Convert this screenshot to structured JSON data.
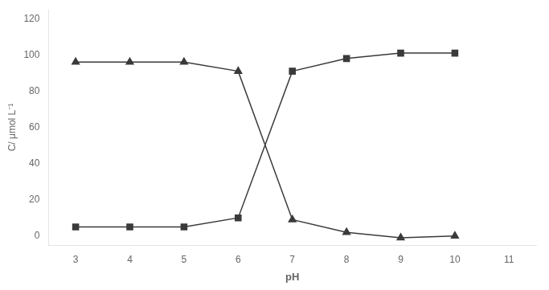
{
  "chart_data": {
    "type": "line",
    "x": [
      3,
      4,
      5,
      6,
      7,
      8,
      9,
      10
    ],
    "series": [
      {
        "color": "#3a3a3a",
        "marker": "triangle",
        "values": [
          96,
          96,
          96,
          91,
          9,
          2,
          -1,
          0
        ]
      },
      {
        "color": "#3a3a3a",
        "marker": "square",
        "values": [
          5,
          5,
          5,
          10,
          91,
          98,
          101,
          101
        ]
      }
    ],
    "xlabel": "pH",
    "ylabel": "C/ μmol L⁻¹",
    "xlim": [
      2.5,
      11.5
    ],
    "ylim": [
      -5,
      125
    ],
    "xticks": [
      3,
      4,
      5,
      6,
      7,
      8,
      9,
      10,
      11
    ],
    "yticks": [
      0,
      20,
      40,
      60,
      80,
      100,
      120
    ],
    "grid": false
  }
}
